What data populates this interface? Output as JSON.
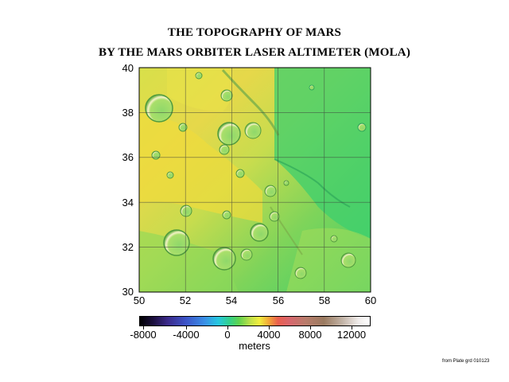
{
  "title_line1": "THE TOPOGRAPHY OF MARS",
  "title_line2": "BY THE MARS ORBITER LASER ALTIMETER (MOLA)",
  "map": {
    "lat_ticks": [
      "40",
      "38",
      "36",
      "34",
      "32",
      "30"
    ],
    "lon_ticks": [
      "50",
      "52",
      "54",
      "56",
      "58",
      "60"
    ],
    "lat_range": [
      30,
      40
    ],
    "lon_range": [
      50,
      60
    ],
    "grid": true
  },
  "colorbar": {
    "labels": [
      "-8000",
      "-4000",
      "0",
      "4000",
      "8000",
      "12000"
    ],
    "unit": "meters",
    "colors": {
      "low": "#000000",
      "blue": "#3c54c8",
      "cyan": "#26c7e0",
      "green": "#5ed24f",
      "yellow": "#f2ee3e",
      "red": "#ea5f4e",
      "brown": "#9a7a60",
      "high": "#ffffff"
    }
  },
  "credit": "from Plate grd 010123"
}
